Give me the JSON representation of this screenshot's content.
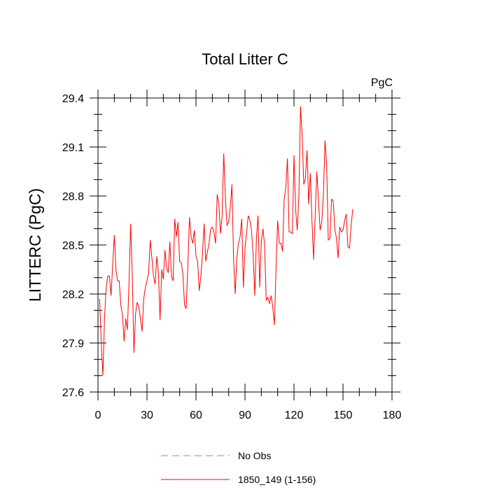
{
  "chart_data": {
    "type": "line",
    "title": "Total Litter C",
    "units_label": "PgC",
    "xlabel": "",
    "ylabel": "LITTERC  (PgC)",
    "xlim": [
      0,
      180
    ],
    "ylim": [
      27.6,
      29.4
    ],
    "x_ticks": [
      0,
      30,
      60,
      90,
      120,
      150,
      180
    ],
    "y_ticks": [
      27.6,
      27.9,
      28.2,
      28.5,
      28.8,
      29.1,
      29.4
    ],
    "y_tick_labels": [
      "27.6",
      "27.9",
      "28.2",
      "28.5",
      "28.8",
      "29.1",
      "29.4"
    ],
    "grid": false,
    "legend_position": "bottom",
    "legend": [
      {
        "label": "No Obs",
        "color": "#8080ff",
        "dash": "dashed"
      },
      {
        "label": "1850_149 (1-156)",
        "color": "#ff0000",
        "dash": "solid"
      }
    ],
    "series": [
      {
        "name": "1850_149 (1-156)",
        "color": "#ff0000",
        "x_start": 1,
        "values": [
          28.17,
          27.9,
          27.7,
          28.05,
          28.24,
          28.31,
          28.31,
          28.19,
          28.38,
          28.56,
          28.35,
          28.28,
          28.28,
          28.13,
          28.07,
          27.91,
          28.05,
          27.98,
          28.27,
          28.63,
          28.31,
          27.84,
          28.08,
          28.15,
          28.12,
          28.05,
          27.97,
          28.17,
          28.24,
          28.28,
          28.33,
          28.53,
          28.42,
          28.31,
          28.26,
          28.43,
          28.33,
          28.04,
          28.35,
          28.29,
          28.47,
          28.36,
          28.33,
          28.52,
          28.31,
          28.28,
          28.66,
          28.55,
          28.64,
          28.4,
          28.39,
          28.32,
          28.13,
          28.11,
          28.37,
          28.67,
          28.55,
          28.51,
          28.59,
          28.43,
          28.4,
          28.22,
          28.31,
          28.45,
          28.63,
          28.4,
          28.46,
          28.51,
          28.6,
          28.61,
          28.58,
          28.51,
          28.81,
          28.75,
          28.57,
          28.68,
          29.06,
          28.79,
          28.62,
          28.64,
          28.73,
          28.87,
          28.42,
          28.2,
          28.42,
          28.51,
          28.55,
          28.66,
          28.24,
          28.48,
          28.58,
          28.68,
          28.65,
          28.59,
          28.44,
          28.19,
          28.54,
          28.68,
          28.24,
          28.52,
          28.6,
          28.5,
          28.16,
          28.18,
          28.14,
          28.19,
          28.12,
          28.01,
          28.35,
          28.65,
          28.51,
          28.51,
          28.46,
          28.78,
          28.85,
          29.03,
          28.58,
          28.58,
          28.57,
          29.05,
          28.72,
          28.59,
          28.8,
          29.35,
          29.17,
          28.87,
          28.91,
          29.08,
          28.75,
          28.94,
          28.65,
          28.41,
          28.69,
          28.95,
          28.77,
          28.59,
          28.64,
          28.81,
          29.14,
          28.99,
          28.53,
          28.54,
          28.78,
          28.77,
          28.6,
          28.54,
          28.42,
          28.61,
          28.58,
          28.59,
          28.65,
          28.69,
          28.49,
          28.48,
          28.62,
          28.72
        ]
      }
    ]
  }
}
